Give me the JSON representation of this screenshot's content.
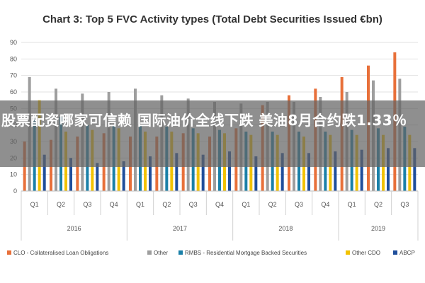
{
  "chart_data": {
    "type": "bar",
    "title": "Chart 3: Top 5 FVC Activity types (Total Debt Securities Issued €bn)",
    "ylim": [
      0,
      90
    ],
    "yticks": [
      0,
      10,
      20,
      30,
      40,
      50,
      60,
      70,
      80,
      90
    ],
    "grid": true,
    "legend_position": "bottom",
    "categories": [
      "Q1",
      "Q2",
      "Q3",
      "Q4",
      "Q1",
      "Q2",
      "Q3",
      "Q4",
      "Q1",
      "Q2",
      "Q3",
      "Q4",
      "Q1",
      "Q2",
      "Q3"
    ],
    "year_groups": [
      {
        "label": "2016",
        "count": 4
      },
      {
        "label": "2017",
        "count": 4
      },
      {
        "label": "2018",
        "count": 4
      },
      {
        "label": "2019",
        "count": 3
      }
    ],
    "series": [
      {
        "name": "CLO - Collateralised Loan Obligations",
        "color": "#e8703a",
        "values": [
          30,
          31,
          33,
          35,
          33,
          33,
          35,
          33,
          38,
          52,
          58,
          62,
          69,
          76,
          84
        ]
      },
      {
        "name": "Other",
        "color": "#9e9e9e",
        "values": [
          69,
          62,
          59,
          60,
          62,
          58,
          56,
          54,
          53,
          54,
          54,
          57,
          60,
          67,
          68
        ]
      },
      {
        "name": "RMBS - Residential Mortgage Backed Securities",
        "color": "#1a80a8",
        "values": [
          46,
          45,
          40,
          40,
          40,
          39,
          38,
          37,
          36,
          36,
          36,
          36,
          37,
          38,
          39
        ]
      },
      {
        "name": "Other CDO",
        "color": "#f2c200",
        "values": [
          55,
          36,
          37,
          38,
          36,
          36,
          35,
          35,
          34,
          34,
          33,
          34,
          34,
          34,
          34
        ]
      },
      {
        "name": "ABCP",
        "color": "#1f4e9b",
        "values": [
          22,
          20,
          17,
          18,
          21,
          23,
          22,
          24,
          21,
          23,
          23,
          24,
          25,
          26,
          26
        ]
      }
    ]
  },
  "overlay_text": "股票配资哪家可信赖 国际油价全线下跌 美油8月合约跌1.33％"
}
